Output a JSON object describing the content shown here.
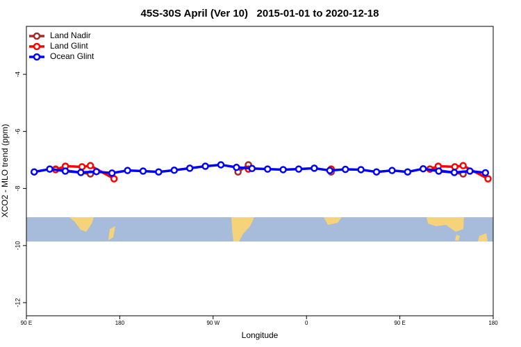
{
  "chart_data": {
    "type": "line",
    "title": "45S-30S April (Ver 10)   2015-01-01 to 2020-12-18",
    "xlabel": "Longitude",
    "ylabel": "XCO2 - MLO trend (ppm)",
    "xlim": [
      90,
      540
    ],
    "xticks": [
      {
        "value": 90,
        "label": "90 E"
      },
      {
        "value": 180,
        "label": "180"
      },
      {
        "value": 270,
        "label": "90 W"
      },
      {
        "value": 360,
        "label": "0"
      },
      {
        "value": 450,
        "label": "90 E"
      },
      {
        "value": 540,
        "label": "180"
      }
    ],
    "ylim": [
      -12.46,
      -2.32
    ],
    "yticks": [
      -4,
      -6,
      -8,
      -10,
      -12
    ],
    "legend": "top-left",
    "series": [
      {
        "name": "Land Nadir",
        "color": "#a52a2a",
        "x": [
          118.2,
          151.7,
          null,
          294,
          304,
          null,
          383.8,
          null,
          479,
          511
        ],
        "values": [
          -7.32,
          -7.49,
          null,
          -7.42,
          -7.17,
          null,
          -7.42,
          null,
          -7.32,
          -7.49
        ]
      },
      {
        "name": "Land Glint",
        "color": "#ff0000",
        "x": [
          118.2,
          127.6,
          143.6,
          151.7,
          174.5,
          null,
          304,
          null,
          383.8,
          null,
          479,
          487,
          503,
          511,
          535
        ],
        "values": [
          -7.34,
          -7.22,
          -7.24,
          -7.2,
          -7.66,
          null,
          -7.32,
          null,
          -7.32,
          null,
          -7.32,
          -7.22,
          -7.24,
          -7.2,
          -7.66
        ]
      },
      {
        "name": "Ocean Glint",
        "color": "#0000ff",
        "x": [
          97.5,
          112.5,
          127.5,
          142.5,
          157.5,
          172.5,
          187.5,
          202.5,
          217.5,
          232.5,
          247.5,
          262.5,
          277.5,
          292.5,
          307.5,
          322.5,
          337.5,
          352.5,
          367.5,
          382.5,
          397.5,
          412.5,
          427.5,
          442.5,
          457.5,
          472.5,
          487.5,
          502.5,
          517.5,
          532.5
        ],
        "values": [
          -7.42,
          -7.32,
          -7.39,
          -7.44,
          -7.41,
          -7.46,
          -7.37,
          -7.39,
          -7.42,
          -7.36,
          -7.29,
          -7.22,
          -7.17,
          -7.26,
          -7.3,
          -7.32,
          -7.34,
          -7.32,
          -7.29,
          -7.37,
          -7.33,
          -7.34,
          -7.42,
          -7.37,
          -7.42,
          -7.31,
          -7.39,
          -7.44,
          -7.39,
          -7.45
        ]
      }
    ]
  }
}
